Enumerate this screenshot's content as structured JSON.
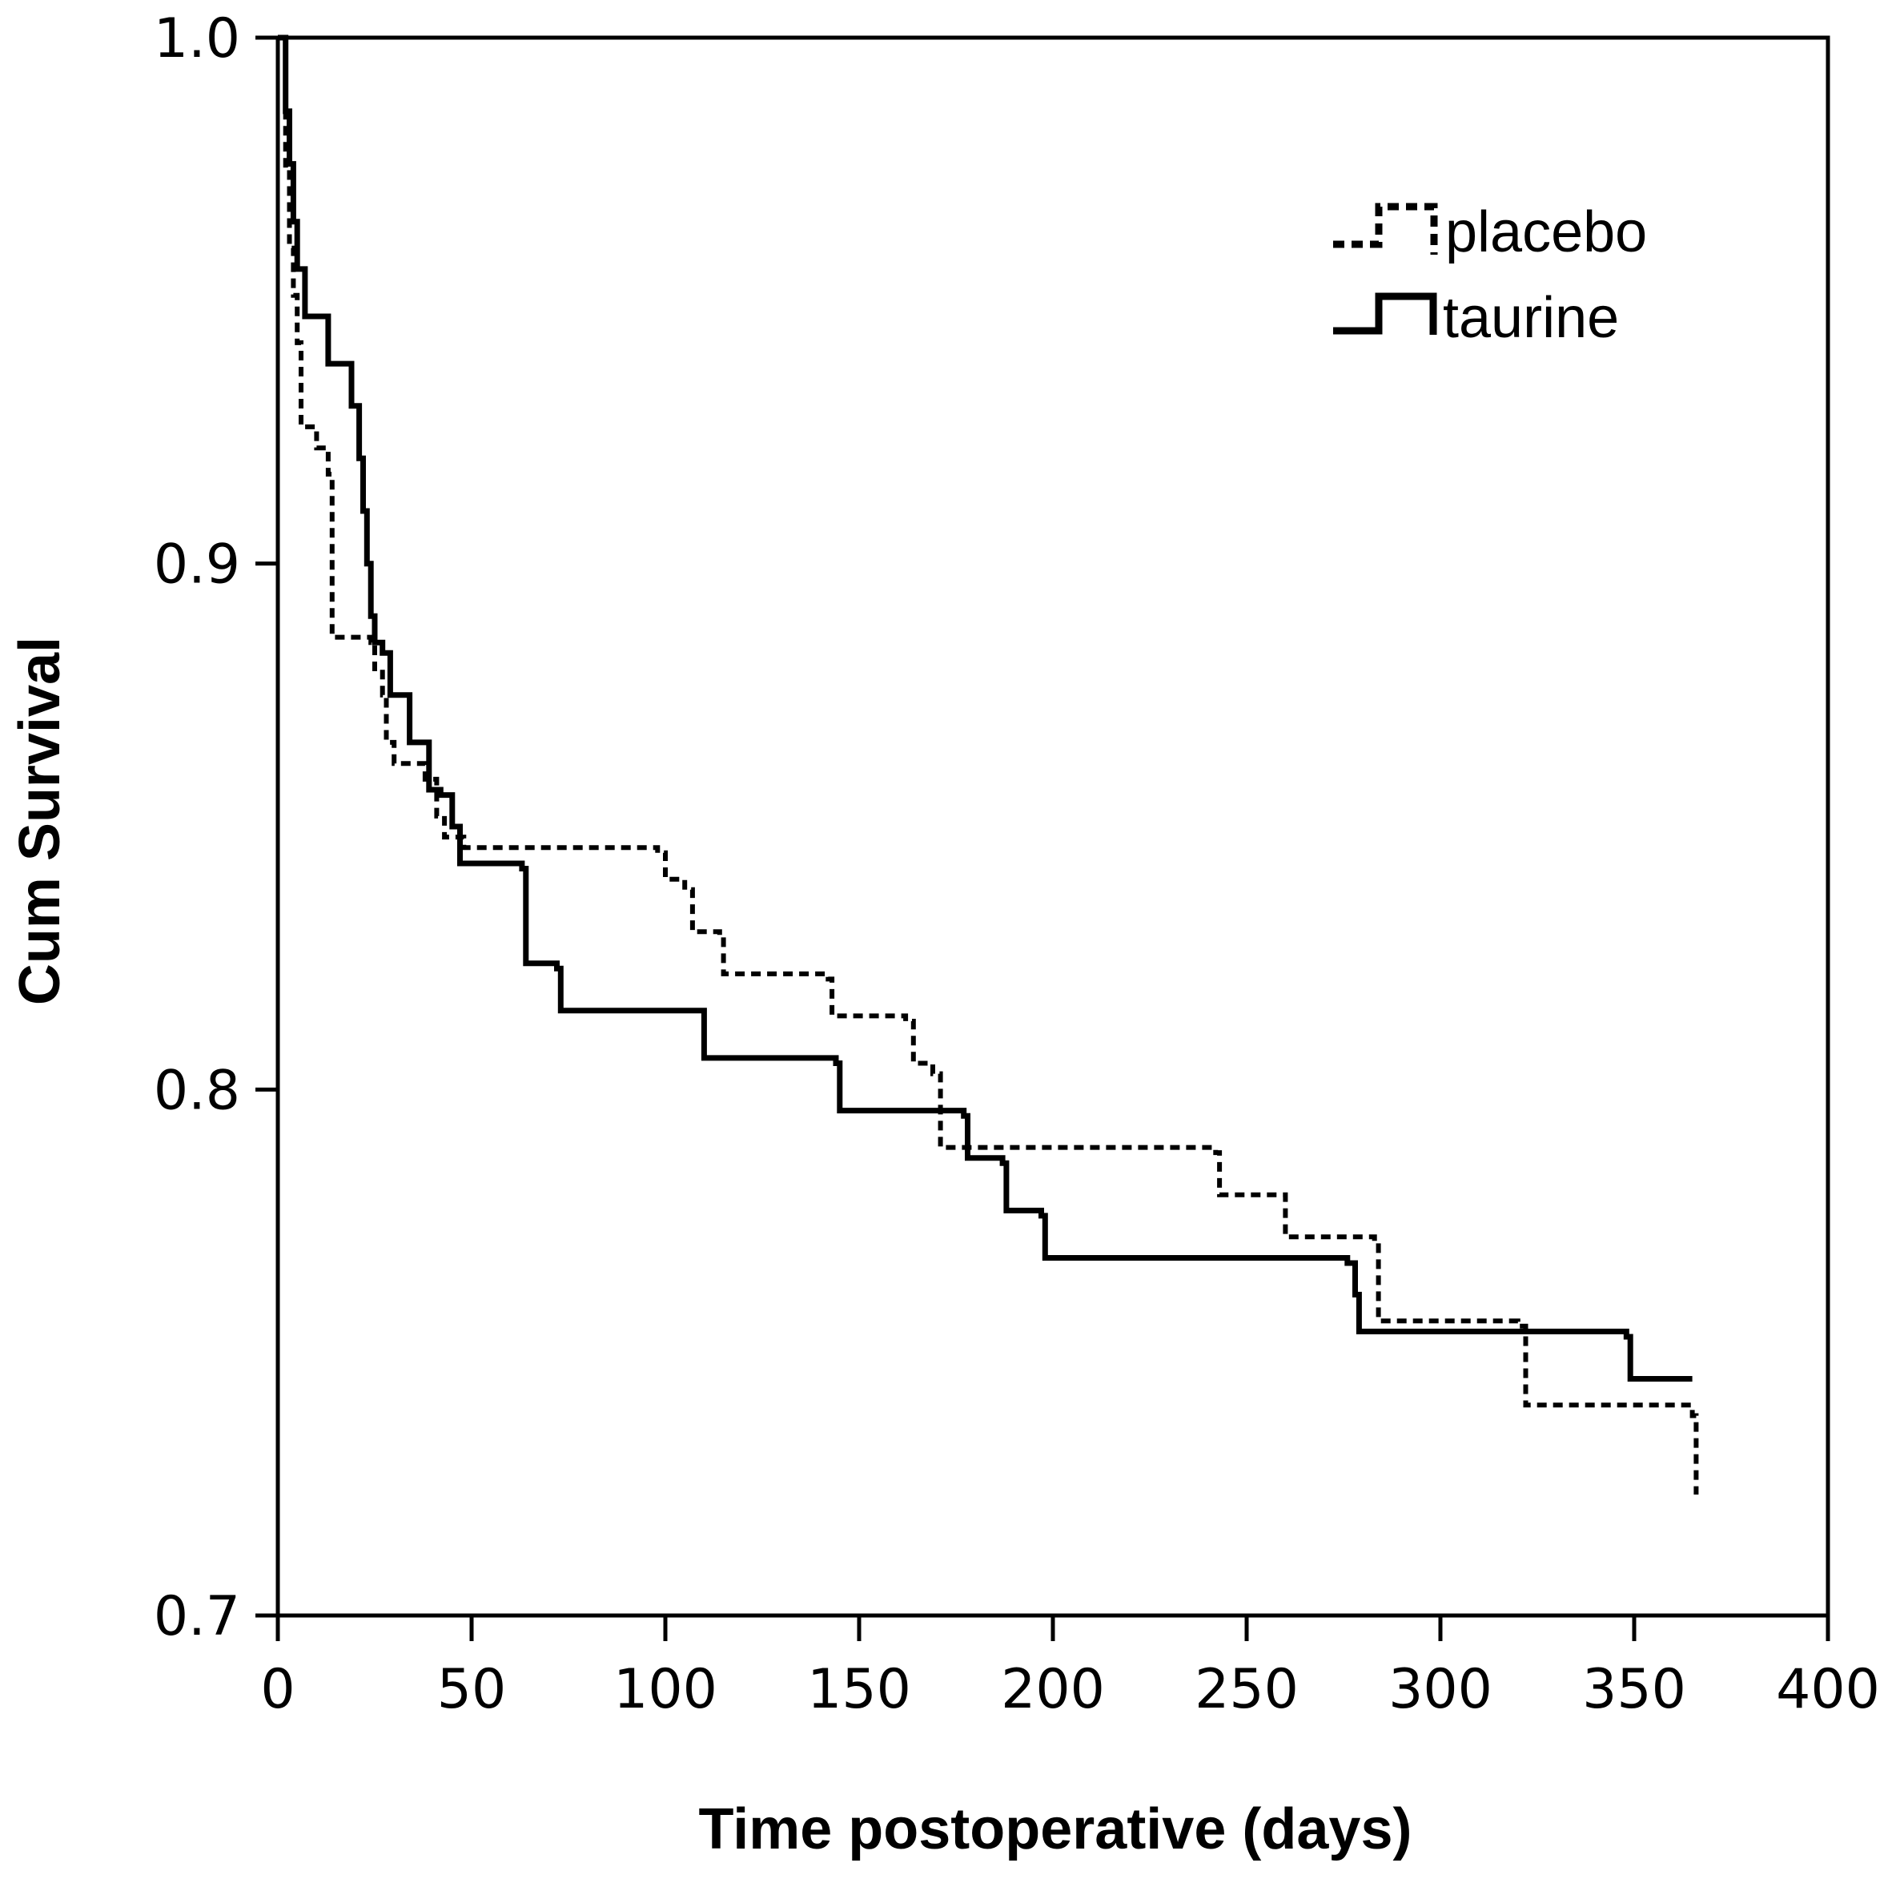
{
  "chart_data": {
    "type": "line",
    "subtype": "kaplan-meier step",
    "title": "",
    "xlabel": "Time postoperative (days)",
    "ylabel": "Cum Survival",
    "xlim": [
      0,
      400
    ],
    "ylim": [
      0.7,
      1.0
    ],
    "xticks": [
      0,
      50,
      100,
      150,
      200,
      250,
      300,
      350,
      400
    ],
    "xtick_labels": [
      "0",
      "50",
      "100",
      "150",
      "200",
      "250",
      "300",
      "350",
      "400"
    ],
    "yticks": [
      0.7,
      0.8,
      0.9,
      1.0
    ],
    "ytick_labels": [
      "0.7",
      "0.8",
      "0.9",
      "1.0"
    ],
    "grid": false,
    "legend_position": "top-right",
    "series": [
      {
        "name": "placebo",
        "style": "dashed",
        "color": "#000000",
        "points": [
          [
            0,
            1.0
          ],
          [
            2,
            0.975
          ],
          [
            3,
            0.96
          ],
          [
            4,
            0.951
          ],
          [
            5,
            0.942
          ],
          [
            6,
            0.926
          ],
          [
            10,
            0.922
          ],
          [
            13,
            0.917
          ],
          [
            14,
            0.886
          ],
          [
            24,
            0.885
          ],
          [
            25,
            0.88
          ],
          [
            27,
            0.875
          ],
          [
            28,
            0.866
          ],
          [
            30,
            0.862
          ],
          [
            38,
            0.859
          ],
          [
            41,
            0.852
          ],
          [
            43,
            0.848
          ],
          [
            48,
            0.846
          ],
          [
            98,
            0.845
          ],
          [
            100,
            0.84
          ],
          [
            105,
            0.838
          ],
          [
            107,
            0.83
          ],
          [
            114,
            0.829
          ],
          [
            115,
            0.822
          ],
          [
            142,
            0.821
          ],
          [
            143,
            0.814
          ],
          [
            162,
            0.813
          ],
          [
            164,
            0.805
          ],
          [
            169,
            0.803
          ],
          [
            171,
            0.789
          ],
          [
            242,
            0.788
          ],
          [
            243,
            0.78
          ],
          [
            257,
            0.78
          ],
          [
            260,
            0.772
          ],
          [
            283,
            0.771
          ],
          [
            284,
            0.756
          ],
          [
            320,
            0.755
          ],
          [
            322,
            0.74
          ],
          [
            365,
            0.738
          ],
          [
            366,
            0.723
          ]
        ],
        "end_x": 366
      },
      {
        "name": "taurine",
        "style": "solid",
        "color": "#000000",
        "points": [
          [
            0,
            1.0
          ],
          [
            2,
            0.986
          ],
          [
            3,
            0.976
          ],
          [
            4,
            0.965
          ],
          [
            5,
            0.956
          ],
          [
            7,
            0.947
          ],
          [
            13,
            0.938
          ],
          [
            18,
            0.938
          ],
          [
            19,
            0.93
          ],
          [
            21,
            0.92
          ],
          [
            22,
            0.91
          ],
          [
            23,
            0.9
          ],
          [
            24,
            0.89
          ],
          [
            25,
            0.885
          ],
          [
            27,
            0.883
          ],
          [
            29,
            0.875
          ],
          [
            34,
            0.866
          ],
          [
            39,
            0.857
          ],
          [
            42,
            0.856
          ],
          [
            45,
            0.85
          ],
          [
            47,
            0.843
          ],
          [
            63,
            0.842
          ],
          [
            64,
            0.824
          ],
          [
            72,
            0.823
          ],
          [
            73,
            0.815
          ],
          [
            109,
            0.815
          ],
          [
            110,
            0.806
          ],
          [
            144,
            0.805
          ],
          [
            145,
            0.796
          ],
          [
            177,
            0.795
          ],
          [
            178,
            0.787
          ],
          [
            187,
            0.786
          ],
          [
            188,
            0.777
          ],
          [
            197,
            0.776
          ],
          [
            198,
            0.768
          ],
          [
            276,
            0.767
          ],
          [
            278,
            0.761
          ],
          [
            279,
            0.754
          ],
          [
            348,
            0.753
          ],
          [
            349,
            0.745
          ]
        ],
        "end_x": 365
      }
    ]
  }
}
